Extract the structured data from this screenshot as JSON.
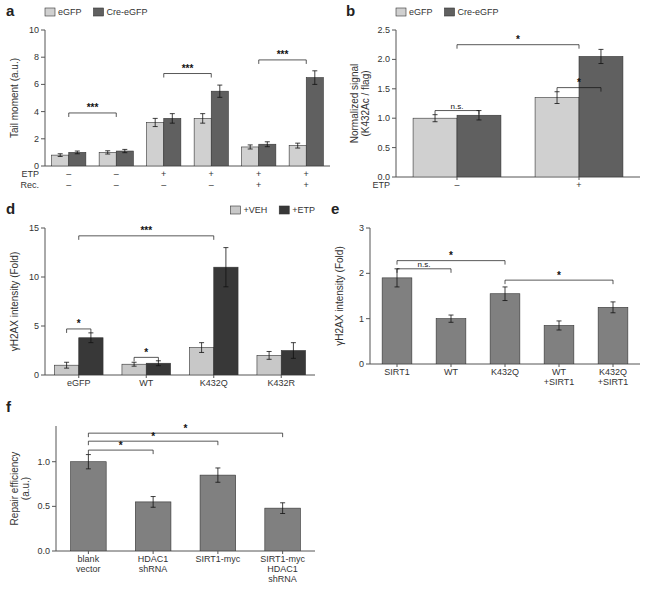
{
  "chart_data": [
    {
      "type": "bar",
      "title": "a",
      "ylabel": "Tail moment (a.u.)",
      "series": [
        {
          "name": "eGFP",
          "color": "#d0d0d0",
          "values": [
            0.8,
            1.0,
            3.2,
            3.5,
            1.4,
            1.5
          ],
          "errors": [
            0.1,
            0.12,
            0.3,
            0.35,
            0.15,
            0.18
          ]
        },
        {
          "name": "Cre-eGFP",
          "color": "#606060",
          "values": [
            1.0,
            1.1,
            3.5,
            5.5,
            1.6,
            6.5
          ],
          "errors": [
            0.1,
            0.12,
            0.35,
            0.45,
            0.18,
            0.5
          ]
        }
      ],
      "x_rows": [
        {
          "name": "ETP",
          "labels": [
            "–",
            "–",
            "+",
            "+",
            "+",
            "+"
          ]
        },
        {
          "name": "Rec.",
          "labels": [
            "–",
            "–",
            "–",
            "–",
            "+",
            "+"
          ]
        }
      ],
      "ylim": [
        0,
        10
      ],
      "yticks": [
        0,
        2,
        4,
        6,
        8,
        10
      ],
      "legend": "upper left",
      "annotations": [
        {
          "text": "***",
          "x": [
            0,
            1
          ],
          "y": 3.9
        },
        {
          "text": "***",
          "x": [
            2,
            3
          ],
          "y": 6.8
        },
        {
          "text": "***",
          "x": [
            4,
            5
          ],
          "y": 7.8
        }
      ]
    },
    {
      "type": "bar",
      "title": "b",
      "ylabel": "Normalized signal\n(K432Ac / flag)",
      "xlabel": "ETP",
      "categories": [
        "–",
        "+"
      ],
      "series": [
        {
          "name": "eGFP",
          "color": "#d0d0d0",
          "values": [
            1.0,
            1.35
          ],
          "errors": [
            0.06,
            0.1
          ]
        },
        {
          "name": "Cre-eGFP",
          "color": "#606060",
          "values": [
            1.05,
            2.05
          ],
          "errors": [
            0.08,
            0.12
          ]
        }
      ],
      "ylim": [
        0,
        2.5
      ],
      "yticks": [
        {
          "value": 0,
          "label": "0.0"
        },
        0.5,
        {
          "value": 1,
          "label": "1.0"
        },
        1.5,
        {
          "value": 2,
          "label": "2.0"
        },
        2.5
      ],
      "legend": "upper left",
      "annotations": [
        {
          "text": "n.s.",
          "x": [
            0,
            0
          ],
          "y": 1.13
        },
        {
          "text": "*",
          "x": [
            1,
            1
          ],
          "y": 1.52
        },
        {
          "text": "*",
          "x": [
            0,
            1
          ],
          "y": 2.25
        }
      ]
    },
    {
      "type": "bar",
      "title": "d",
      "ylabel": "γH2AX intensity (Fold)",
      "categories": [
        "eGFP",
        "WT",
        "K432Q",
        "K432R"
      ],
      "series": [
        {
          "name": "+VEH",
          "color": "#c8c8c8",
          "values": [
            1.0,
            1.1,
            2.8,
            2.0
          ],
          "errors": [
            0.3,
            0.2,
            0.5,
            0.4
          ]
        },
        {
          "name": "+ETP",
          "color": "#383838",
          "values": [
            3.8,
            1.2,
            11.0,
            2.5
          ],
          "errors": [
            0.5,
            0.25,
            2.0,
            0.8
          ]
        }
      ],
      "ylim": [
        0,
        15
      ],
      "yticks": [
        0,
        5,
        10,
        15
      ],
      "legend": "upper right",
      "annotations": [
        {
          "text": "*",
          "x": [
            0,
            0
          ],
          "y": 4.7
        },
        {
          "text": "*",
          "x": [
            1,
            1
          ],
          "y": 1.8
        },
        {
          "text": "***",
          "x": [
            0,
            2
          ],
          "y": 14.2
        }
      ]
    },
    {
      "type": "bar",
      "title": "e",
      "ylabel": "γH2AX intensity (Fold)",
      "categories": [
        "SIRT1",
        "WT",
        "K432Q",
        "WT\n+SIRT1",
        "K432Q\n+SIRT1"
      ],
      "values": [
        1.9,
        1.0,
        1.55,
        0.85,
        1.25
      ],
      "errors": [
        0.2,
        0.08,
        0.15,
        0.1,
        0.12
      ],
      "color": "#808080",
      "ylim": [
        0,
        3.0
      ],
      "yticks": [
        0,
        1,
        2,
        3
      ],
      "annotations": [
        {
          "text": "*",
          "x": [
            0,
            2
          ],
          "y": 2.28
        },
        {
          "text": "n.s.",
          "x": [
            0,
            1
          ],
          "y": 2.1
        },
        {
          "text": "*",
          "x": [
            2,
            4
          ],
          "y": 1.85
        }
      ]
    },
    {
      "type": "bar",
      "title": "f",
      "ylabel": "Repair efficiency\n(a.u.)",
      "categories": [
        "blank\nvector",
        "HDAC1\nshRNA",
        "SIRT1-myc",
        "SIRT1-myc\nHDAC1\nshRNA"
      ],
      "values": [
        1.0,
        0.55,
        0.85,
        0.48
      ],
      "errors": [
        0.08,
        0.06,
        0.08,
        0.06
      ],
      "color": "#808080",
      "ylim": [
        0,
        1.4
      ],
      "yticks": [
        {
          "value": 0,
          "label": "0.0"
        },
        0.5,
        {
          "value": 1,
          "label": "1.0"
        }
      ],
      "annotations": [
        {
          "text": "*",
          "x": [
            0,
            1
          ],
          "y": 1.13
        },
        {
          "text": "*",
          "x": [
            0,
            2
          ],
          "y": 1.23
        },
        {
          "text": "*",
          "x": [
            0,
            3
          ],
          "y": 1.32
        }
      ]
    }
  ]
}
